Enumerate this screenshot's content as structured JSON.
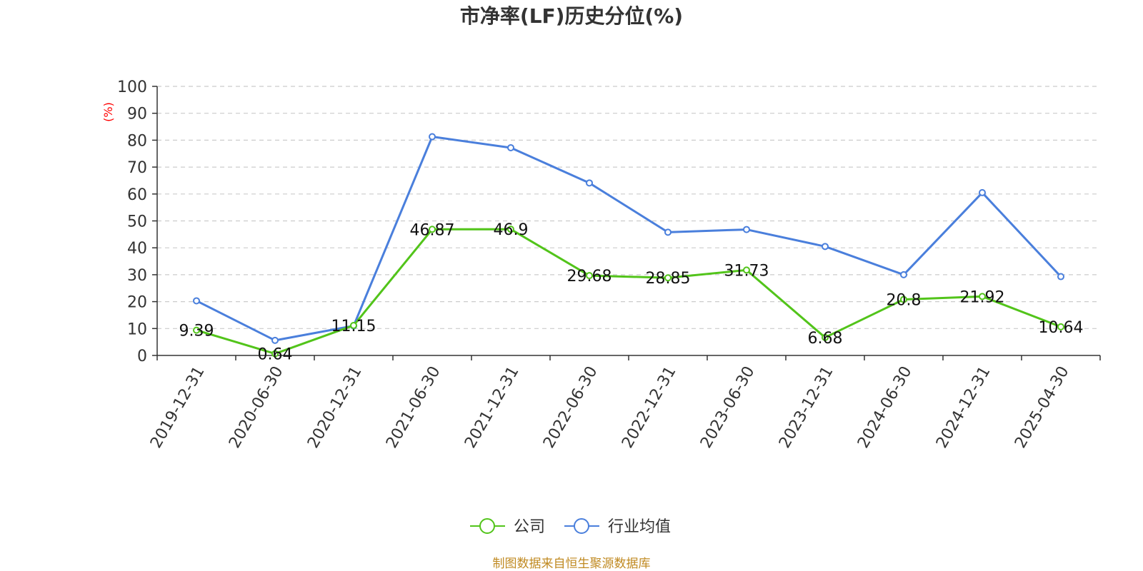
{
  "chart_data": {
    "type": "line",
    "title": "市净率(LF)历史分位(%)",
    "y_unit": "(%)",
    "ylim": [
      0,
      100
    ],
    "yticks": [
      0,
      10,
      20,
      30,
      40,
      50,
      60,
      70,
      80,
      90,
      100
    ],
    "categories": [
      "2019-12-31",
      "2020-06-30",
      "2020-12-31",
      "2021-06-30",
      "2021-12-31",
      "2022-06-30",
      "2022-12-31",
      "2023-06-30",
      "2023-12-31",
      "2024-06-30",
      "2024-12-31",
      "2025-04-30"
    ],
    "grid": true,
    "legend_position": "bottom",
    "series": [
      {
        "name": "公司",
        "color": "#52c41a",
        "values": [
          9.39,
          0.64,
          11.15,
          46.87,
          46.9,
          29.68,
          28.85,
          31.73,
          6.68,
          20.8,
          21.92,
          10.64
        ],
        "show_labels": true
      },
      {
        "name": "行业均值",
        "color": "#4a7fdc",
        "values": [
          20.3,
          5.6,
          11.0,
          81.3,
          77.2,
          64.1,
          45.8,
          46.8,
          40.5,
          30.0,
          60.5,
          29.3
        ],
        "show_labels": false
      }
    ]
  },
  "source_text": "制图数据来自恒生聚源数据库",
  "colors": {
    "axis": "#333333",
    "grid": "#cccccc",
    "unit": "#ff0000",
    "source": "#c08a22"
  }
}
